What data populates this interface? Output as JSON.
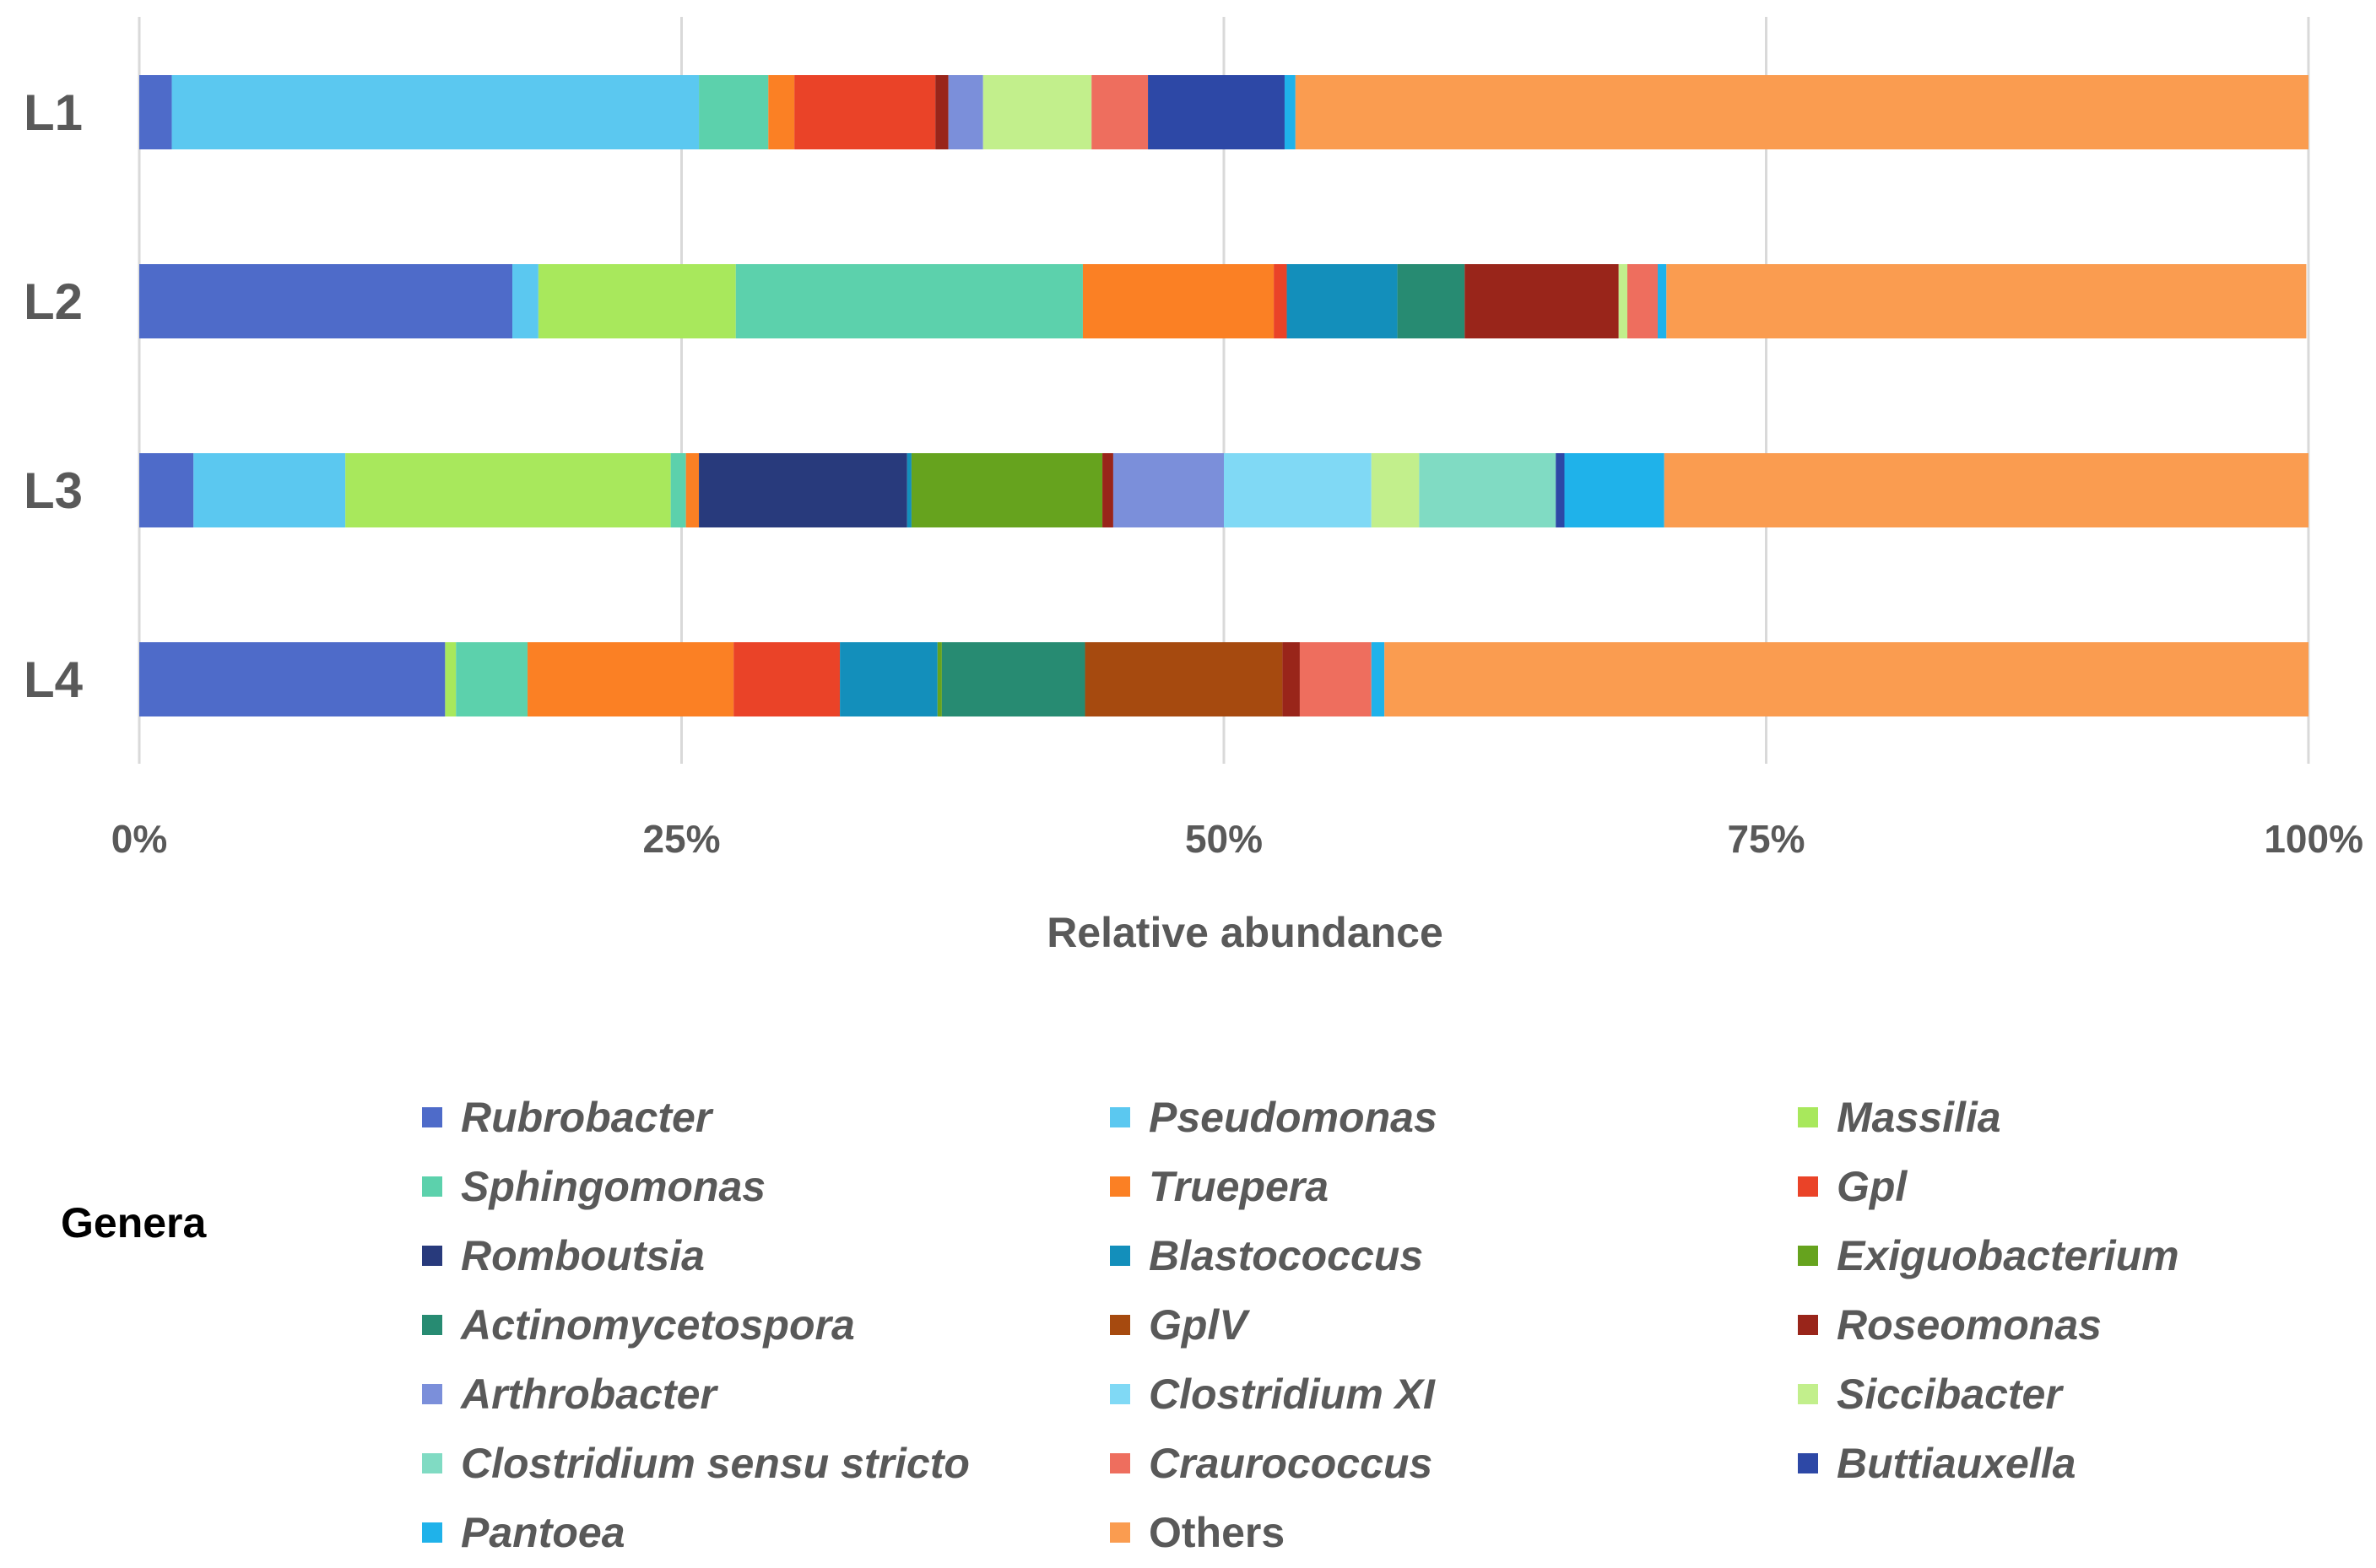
{
  "chart_data": {
    "type": "bar",
    "orientation": "horizontal",
    "stacked": true,
    "categories": [
      "L1",
      "L2",
      "L3",
      "L4"
    ],
    "xlabel": "Relative abundance",
    "xticks": [
      "0%",
      "25%",
      "50%",
      "75%",
      "100%"
    ],
    "xlim": [
      0,
      100
    ],
    "legend_title": "Genera",
    "series": [
      {
        "name": "Rubrobacter",
        "color": "#4E6BC9",
        "italic": true,
        "values": [
          1.5,
          17.2,
          2.5,
          14.1
        ]
      },
      {
        "name": "Pseudomonas",
        "color": "#5BC8F0",
        "italic": true,
        "values": [
          24.3,
          1.2,
          7.0,
          0.0
        ]
      },
      {
        "name": "Massilia",
        "color": "#A8E85C",
        "italic": true,
        "values": [
          0.0,
          9.1,
          15.0,
          0.5
        ]
      },
      {
        "name": "Sphingomonas",
        "color": "#5CD1AC",
        "italic": true,
        "values": [
          3.2,
          16.0,
          0.7,
          3.3
        ]
      },
      {
        "name": "Truepera",
        "color": "#FB8024",
        "italic": true,
        "values": [
          1.2,
          8.8,
          0.6,
          9.5
        ]
      },
      {
        "name": "Gpl",
        "color": "#EA4328",
        "italic": true,
        "values": [
          6.5,
          0.6,
          0.0,
          4.9
        ]
      },
      {
        "name": "Romboutsia",
        "color": "#283A7C",
        "italic": true,
        "values": [
          0.0,
          0.0,
          9.6,
          0.0
        ]
      },
      {
        "name": "Blastococcus",
        "color": "#138FBB",
        "italic": true,
        "values": [
          0.0,
          5.1,
          0.2,
          4.5
        ]
      },
      {
        "name": "Exiguobacterium",
        "color": "#66A31E",
        "italic": true,
        "values": [
          0.0,
          0.0,
          8.8,
          0.2
        ]
      },
      {
        "name": "Actinomycetospora",
        "color": "#278B72",
        "italic": true,
        "values": [
          0.0,
          3.1,
          0.0,
          6.6
        ]
      },
      {
        "name": "GplV",
        "color": "#A64A0F",
        "italic": true,
        "values": [
          0.0,
          0.0,
          0.0,
          9.1
        ]
      },
      {
        "name": "Roseomonas",
        "color": "#99251A",
        "italic": true,
        "values": [
          0.6,
          7.1,
          0.5,
          0.8
        ]
      },
      {
        "name": "Arthrobacter",
        "color": "#7B8FDA",
        "italic": true,
        "values": [
          1.6,
          0.0,
          5.1,
          0.0
        ]
      },
      {
        "name": "Clostridium XI",
        "color": "#80D9F5",
        "italic": true,
        "values": [
          0.0,
          0.0,
          6.8,
          0.0
        ]
      },
      {
        "name": "Siccibacter",
        "color": "#C2EF8C",
        "italic": true,
        "values": [
          5.0,
          0.4,
          2.2,
          0.0
        ]
      },
      {
        "name": "Clostridium sensu stricto",
        "color": "#80DBC3",
        "italic": true,
        "values": [
          0.0,
          0.0,
          6.3,
          0.0
        ]
      },
      {
        "name": "Craurococcus",
        "color": "#EE6E5E",
        "italic": true,
        "values": [
          2.6,
          1.4,
          0.0,
          3.3
        ]
      },
      {
        "name": "Buttiauxella",
        "color": "#2D48A6",
        "italic": true,
        "values": [
          6.3,
          0.0,
          0.4,
          0.0
        ]
      },
      {
        "name": "Pantoea",
        "color": "#1FB2EA",
        "italic": true,
        "values": [
          0.5,
          0.4,
          4.6,
          0.6
        ]
      },
      {
        "name": "Others",
        "color": "#FA9C50",
        "italic": false,
        "values": [
          46.7,
          29.5,
          29.7,
          42.6
        ]
      }
    ]
  }
}
